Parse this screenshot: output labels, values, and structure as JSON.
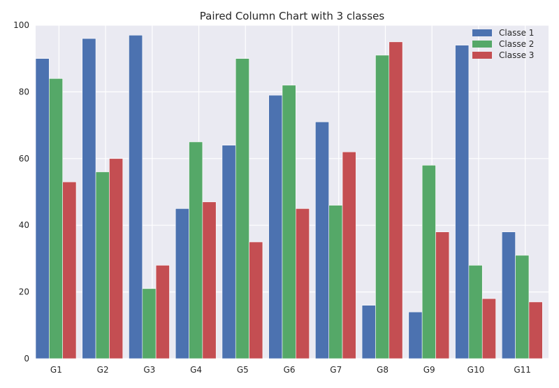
{
  "chart_data": {
    "type": "bar",
    "title": "Paired Column Chart with 3 classes",
    "xlabel": "",
    "ylabel": "",
    "categories": [
      "G1",
      "G2",
      "G3",
      "G4",
      "G5",
      "G6",
      "G7",
      "G8",
      "G9",
      "G10",
      "G11"
    ],
    "series": [
      {
        "name": "Classe 1",
        "color": "#4c72b0",
        "values": [
          90,
          96,
          97,
          45,
          64,
          79,
          71,
          16,
          14,
          94,
          38
        ]
      },
      {
        "name": "Classe 2",
        "color": "#55a868",
        "values": [
          84,
          56,
          21,
          65,
          90,
          82,
          46,
          91,
          58,
          28,
          31
        ]
      },
      {
        "name": "Classe 3",
        "color": "#c44e52",
        "values": [
          53,
          60,
          28,
          47,
          35,
          45,
          62,
          95,
          38,
          18,
          17
        ]
      }
    ],
    "ylim": [
      0,
      100
    ],
    "yticks": [
      0,
      20,
      40,
      60,
      80,
      100
    ],
    "grid": true,
    "legend_position": "top-right",
    "background": "#eaeaf2"
  }
}
